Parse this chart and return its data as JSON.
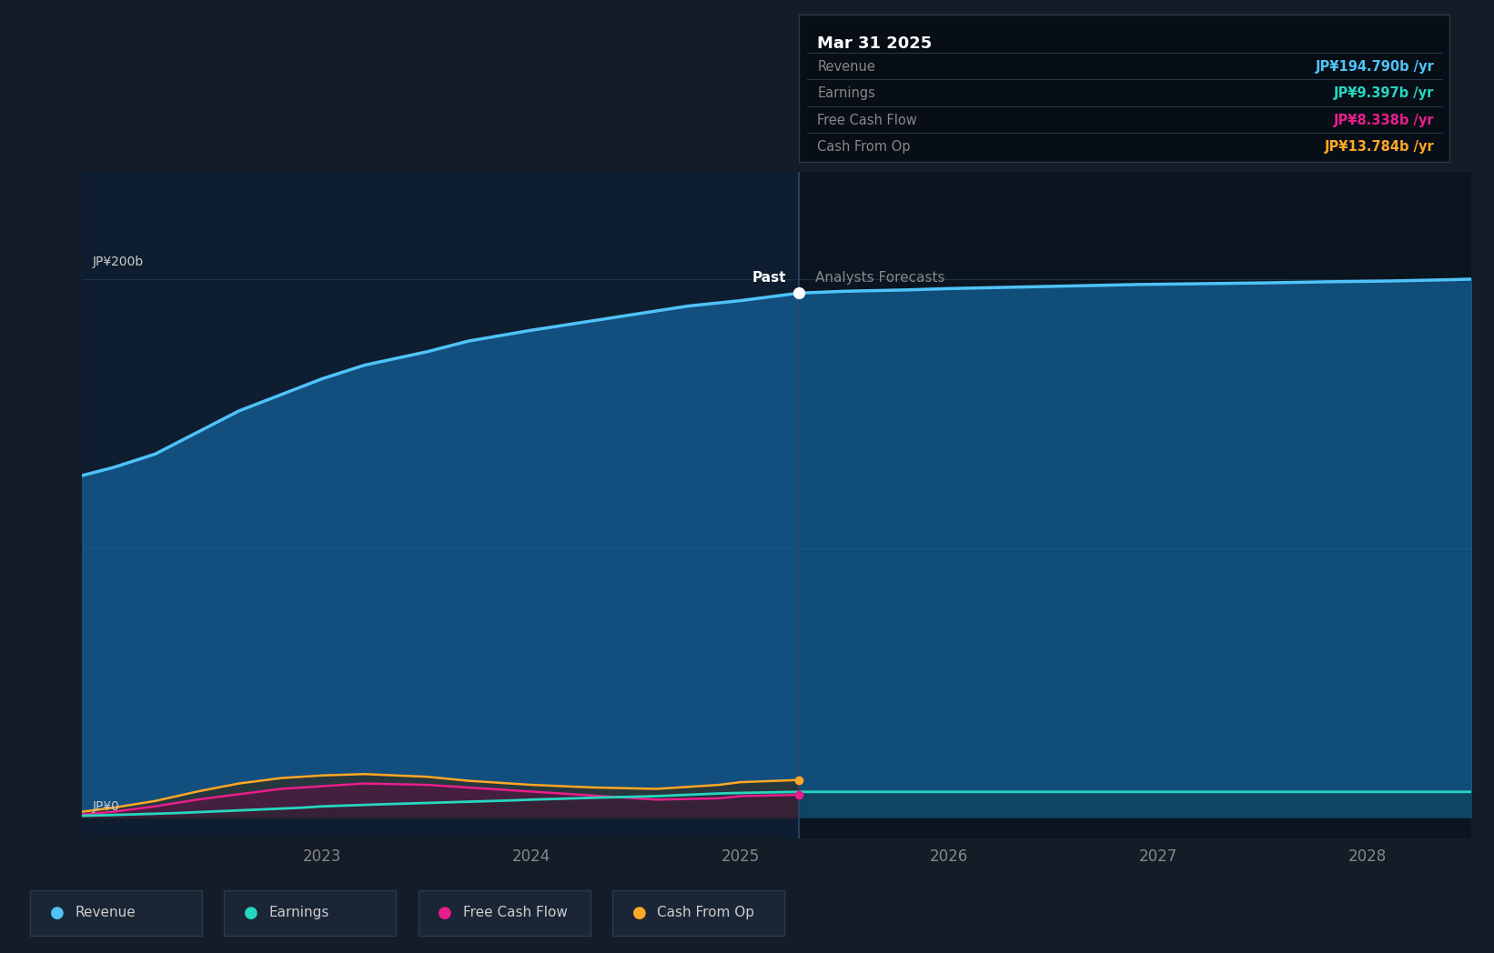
{
  "bg_color": "#131c27",
  "plot_bg_past": "#0e1e30",
  "plot_bg_future": "#0a1520",
  "grid_color": "#1e3348",
  "y200_label": "JP¥200b",
  "y0_label": "JP¥0",
  "past_label": "Past",
  "forecast_label": "Analysts Forecasts",
  "divider_x": 2025.28,
  "x_min": 2021.85,
  "x_max": 2028.5,
  "y_min": -8,
  "y_max": 240,
  "y200_val": 200,
  "revenue": {
    "x": [
      2021.85,
      2022.0,
      2022.2,
      2022.4,
      2022.6,
      2022.8,
      2023.0,
      2023.2,
      2023.5,
      2023.7,
      2024.0,
      2024.25,
      2024.5,
      2024.75,
      2025.0,
      2025.28,
      2025.5,
      2025.8,
      2026.0,
      2026.3,
      2026.6,
      2026.9,
      2027.2,
      2027.5,
      2027.8,
      2028.1,
      2028.4,
      2028.5
    ],
    "y": [
      127,
      130,
      135,
      143,
      151,
      157,
      163,
      168,
      173,
      177,
      181,
      184,
      187,
      190,
      192,
      194.8,
      195.5,
      196,
      196.5,
      197,
      197.5,
      198,
      198.3,
      198.6,
      199,
      199.3,
      199.8,
      200
    ],
    "color": "#4fc3f7",
    "fill_color": "#1565a0",
    "fill_alpha": 0.7,
    "line_width": 2.5
  },
  "earnings": {
    "x": [
      2021.85,
      2022.0,
      2022.3,
      2022.6,
      2022.9,
      2023.0,
      2023.3,
      2023.6,
      2023.9,
      2024.0,
      2024.3,
      2024.6,
      2024.9,
      2025.0,
      2025.28,
      2025.5,
      2025.8,
      2026.0,
      2026.5,
      2027.0,
      2027.5,
      2028.0,
      2028.5
    ],
    "y": [
      0.5,
      0.8,
      1.5,
      2.5,
      3.5,
      4.0,
      4.8,
      5.5,
      6.2,
      6.5,
      7.2,
      7.8,
      8.8,
      9.0,
      9.4,
      9.4,
      9.4,
      9.4,
      9.4,
      9.4,
      9.4,
      9.4,
      9.4
    ],
    "color": "#26d7c0",
    "fill_color": "#0a2a20",
    "fill_alpha": 0.25,
    "line_width": 2.0
  },
  "fcf": {
    "x": [
      2021.85,
      2022.0,
      2022.2,
      2022.4,
      2022.6,
      2022.8,
      2023.0,
      2023.2,
      2023.5,
      2023.7,
      2024.0,
      2024.3,
      2024.6,
      2024.9,
      2025.0,
      2025.28
    ],
    "y": [
      1.0,
      2.0,
      4.0,
      6.5,
      8.5,
      10.5,
      11.5,
      12.5,
      12.0,
      11.0,
      9.5,
      8.0,
      6.5,
      7.0,
      7.8,
      8.3
    ],
    "color": "#e91e8c",
    "fill_color": "#5a1040",
    "fill_alpha": 0.6,
    "line_width": 1.8
  },
  "cashop": {
    "x": [
      2021.85,
      2022.0,
      2022.2,
      2022.4,
      2022.6,
      2022.8,
      2023.0,
      2023.2,
      2023.5,
      2023.7,
      2024.0,
      2024.3,
      2024.6,
      2024.9,
      2025.0,
      2025.28
    ],
    "y": [
      2.0,
      3.5,
      6.0,
      9.5,
      12.5,
      14.5,
      15.5,
      16.0,
      15.0,
      13.5,
      12.0,
      11.0,
      10.5,
      12.0,
      13.0,
      13.8
    ],
    "color": "#ffa726",
    "fill_color": "#3a2000",
    "fill_alpha": 0.5,
    "line_width": 1.8
  },
  "tooltip": {
    "title": "Mar 31 2025",
    "title_color": "#ffffff",
    "bg": "#080e16",
    "border": "#2a3a4a",
    "rows": [
      {
        "label": "Revenue",
        "value": "JP¥194.790b /yr",
        "value_color": "#4fc3f7"
      },
      {
        "label": "Earnings",
        "value": "JP¥9.397b /yr",
        "value_color": "#26d7c0"
      },
      {
        "label": "Free Cash Flow",
        "value": "JP¥8.338b /yr",
        "value_color": "#e91e8c"
      },
      {
        "label": "Cash From Op",
        "value": "JP¥13.784b /yr",
        "value_color": "#ffa726"
      }
    ],
    "label_color": "#888888"
  },
  "legend": [
    {
      "label": "Revenue",
      "color": "#4fc3f7"
    },
    {
      "label": "Earnings",
      "color": "#26d7c0"
    },
    {
      "label": "Free Cash Flow",
      "color": "#e91e8c"
    },
    {
      "label": "Cash From Op",
      "color": "#ffa726"
    }
  ]
}
